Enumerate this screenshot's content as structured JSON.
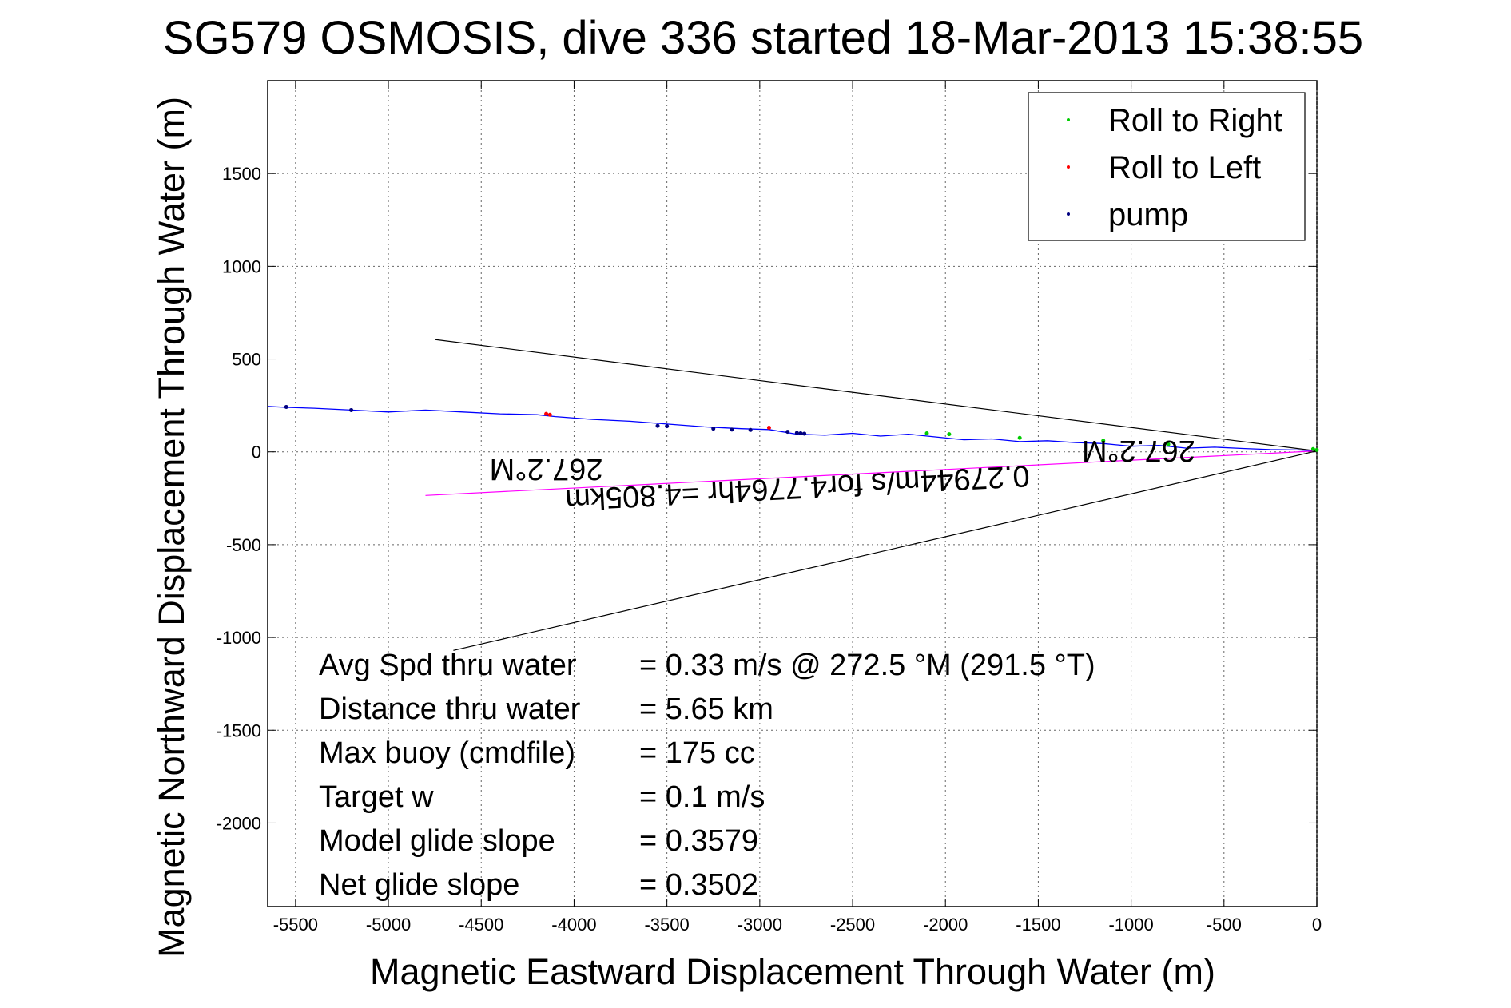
{
  "chart_data": {
    "type": "line",
    "title": "SG579 OSMOSIS, dive 336 started 18-Mar-2013 15:38:55",
    "xlabel": "Magnetic Eastward Displacement Through Water (m)",
    "ylabel": "Magnetic Northward Displacement Through Water (m)",
    "xlim": [
      -5650,
      0
    ],
    "ylim": [
      -2450,
      2000
    ],
    "xticks": [
      -5500,
      -5000,
      -4500,
      -4000,
      -3500,
      -3000,
      -2500,
      -2000,
      -1500,
      -1000,
      -500,
      0
    ],
    "xtick_labels": [
      "-5500",
      "-5000",
      "-4500",
      "-4000",
      "-3500",
      "-3000",
      "-2500",
      "-2000",
      "-1500",
      "-1000",
      "-500",
      "0"
    ],
    "yticks": [
      -2000,
      -1500,
      -1000,
      -500,
      0,
      500,
      1000,
      1500
    ],
    "ytick_labels": [
      "-2000",
      "-1500",
      "-1000",
      "-500",
      "0",
      "500",
      "1000",
      "1500"
    ],
    "grid": true,
    "legend_position": "top-right",
    "legend": [
      {
        "label": "Roll to Right",
        "color": "#00cc00"
      },
      {
        "label": "Roll to Left",
        "color": "#ff0000"
      },
      {
        "label": "pump",
        "color": "#000080"
      }
    ],
    "series": [
      {
        "kind": "track",
        "color": "#0000ff",
        "x": [
          -5650,
          -5550,
          -5400,
          -5200,
          -5000,
          -4800,
          -4600,
          -4400,
          -4200,
          -4100,
          -3900,
          -3700,
          -3500,
          -3300,
          -3100,
          -2950,
          -2800,
          -2650,
          -2500,
          -2350,
          -2200,
          -2050,
          -1900,
          -1750,
          -1600,
          -1450,
          -1300,
          -1150,
          -1000,
          -850,
          -700,
          -550,
          -400,
          -250,
          -100,
          0
        ],
        "y": [
          245,
          240,
          235,
          225,
          215,
          225,
          215,
          205,
          200,
          190,
          175,
          165,
          150,
          135,
          125,
          120,
          95,
          90,
          100,
          85,
          95,
          80,
          65,
          70,
          55,
          60,
          50,
          45,
          30,
          35,
          20,
          25,
          18,
          12,
          10,
          5
        ]
      },
      {
        "kind": "dive heading line",
        "color": "#ff00ff",
        "x": [
          -4800,
          0
        ],
        "y": [
          -235,
          5
        ]
      },
      {
        "kind": "cone upper",
        "color": "#000000",
        "x": [
          -4750,
          0
        ],
        "y": [
          605,
          5
        ]
      },
      {
        "kind": "cone lower",
        "color": "#000000",
        "x": [
          -4650,
          0
        ],
        "y": [
          -1070,
          5
        ]
      }
    ],
    "markers": [
      {
        "type": "pump",
        "x": [
          -5550,
          -5200,
          -3550,
          -3500,
          -3250,
          -3150,
          -3050,
          -2850,
          -2800,
          -2780,
          -2760
        ],
        "y": [
          242,
          225,
          140,
          138,
          125,
          120,
          118,
          108,
          102,
          100,
          98
        ]
      },
      {
        "type": "roll_left",
        "x": [
          -4150,
          -4130,
          -2950
        ],
        "y": [
          205,
          200,
          130
        ]
      },
      {
        "type": "roll_right",
        "x": [
          -2100,
          -1980,
          -1600,
          -1150,
          -800,
          -20,
          0
        ],
        "y": [
          100,
          95,
          75,
          60,
          40,
          15,
          10
        ]
      }
    ],
    "annotations": [
      {
        "text": "267.2°M",
        "rotated": true,
        "x": -4150,
        "y": -40
      },
      {
        "text": "267.2°M",
        "rotated": true,
        "x": -960,
        "y": 60
      },
      {
        "text": "0.27944m/s for4.7764hr =4.805km",
        "rotated": true,
        "x": -2800,
        "y": -140
      }
    ],
    "info_box": [
      {
        "label": "Avg Spd thru water",
        "value": "=  0.33 m/s @ 272.5 °M (291.5 °T)"
      },
      {
        "label": "Distance thru water",
        "value": "=  5.65 km"
      },
      {
        "label": "Max buoy (cmdfile)",
        "value": "= 175 cc"
      },
      {
        "label": "Target w",
        "value": "= 0.1 m/s"
      },
      {
        "label": "Model glide slope",
        "value": "= 0.3579"
      },
      {
        "label": "Net glide slope",
        "value": "= 0.3502"
      }
    ]
  }
}
